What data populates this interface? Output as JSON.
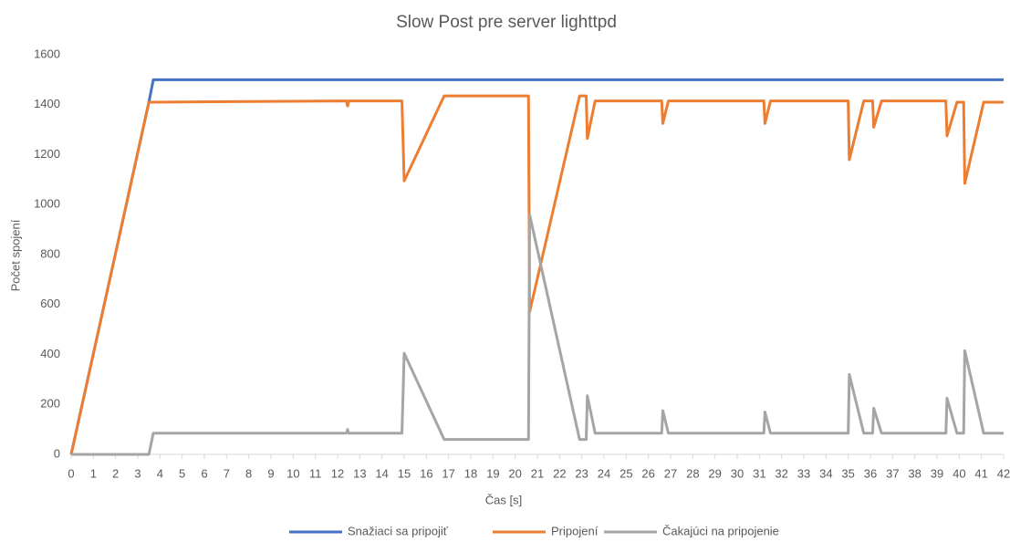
{
  "chart_data": {
    "type": "line",
    "title": "Slow Post pre server lighttpd",
    "xlabel": "Čas [s]",
    "ylabel": "Počet spojení",
    "xlim": [
      0,
      42
    ],
    "xticks": [
      0,
      1,
      2,
      3,
      4,
      5,
      6,
      7,
      8,
      9,
      10,
      11,
      12,
      13,
      14,
      15,
      16,
      17,
      18,
      19,
      20,
      21,
      22,
      23,
      24,
      25,
      26,
      27,
      28,
      29,
      30,
      31,
      32,
      33,
      34,
      35,
      36,
      37,
      38,
      39,
      40,
      41,
      42
    ],
    "ylim": [
      0,
      1600
    ],
    "yticks": [
      0,
      200,
      400,
      600,
      800,
      1000,
      1200,
      1400,
      1600
    ],
    "grid": false,
    "legend": "bottom",
    "series": [
      {
        "name": "Snažiaci sa pripojiť",
        "color": "#4472c4",
        "x": [
          0,
          3.5,
          3.7,
          42
        ],
        "values": [
          0,
          1410,
          1500,
          1500
        ]
      },
      {
        "name": "Pripojení",
        "color": "#ed7d31",
        "x": [
          0,
          3.5,
          12.4,
          12.45,
          12.5,
          14.9,
          15,
          16.8,
          20.6,
          20.65,
          22.9,
          23.2,
          23.25,
          23.6,
          26.6,
          26.65,
          26.9,
          31.2,
          31.25,
          31.5,
          35,
          35.05,
          35.7,
          36.1,
          36.15,
          36.5,
          39.4,
          39.45,
          39.9,
          40.2,
          40.25,
          41.1,
          42
        ],
        "values": [
          0,
          1410,
          1415,
          1395,
          1415,
          1415,
          1095,
          1435,
          1435,
          570,
          1435,
          1435,
          1265,
          1415,
          1415,
          1325,
          1415,
          1415,
          1325,
          1415,
          1415,
          1180,
          1415,
          1415,
          1310,
          1415,
          1415,
          1275,
          1410,
          1410,
          1085,
          1410,
          1410
        ]
      },
      {
        "name": "Čakajúci na pripojenie",
        "color": "#a5a5a5",
        "x": [
          0,
          3.5,
          3.7,
          12.4,
          12.45,
          12.5,
          14.9,
          15,
          16.8,
          20.6,
          20.65,
          22.9,
          23.2,
          23.25,
          23.6,
          26.6,
          26.65,
          26.9,
          31.2,
          31.25,
          31.5,
          35,
          35.05,
          35.7,
          36.1,
          36.15,
          36.5,
          39.4,
          39.45,
          39.9,
          40.2,
          40.25,
          41.1,
          42
        ],
        "values": [
          0,
          0,
          85,
          85,
          100,
          85,
          85,
          405,
          60,
          60,
          960,
          60,
          60,
          235,
          85,
          85,
          175,
          85,
          85,
          170,
          85,
          85,
          320,
          85,
          85,
          185,
          85,
          85,
          225,
          85,
          85,
          415,
          85,
          85
        ]
      }
    ]
  }
}
